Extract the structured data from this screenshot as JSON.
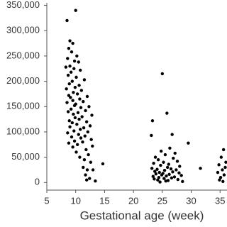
{
  "chart_data": {
    "type": "scatter",
    "x_label": "Gestational age (week)",
    "color": "#000000",
    "xlim": [
      5,
      36.2
    ],
    "ylim": [
      -15000,
      355000
    ],
    "xticks": [
      5,
      10,
      15,
      20,
      25,
      30,
      35
    ],
    "yticks": [
      0,
      {
        "value": 50000,
        "label": "50,000"
      },
      {
        "value": 100000,
        "label": "100,000"
      },
      {
        "value": 150000,
        "label": "150,000"
      },
      {
        "value": 200000,
        "label": "200,000"
      },
      {
        "value": 250000,
        "label": "250,000"
      },
      {
        "value": 300000,
        "label": "300,000"
      },
      {
        "value": 350000,
        "label": "350,000"
      }
    ],
    "x": [
      10,
      8.5,
      9,
      9.5,
      8.8,
      9.3,
      10.2,
      8.6,
      9.8,
      10.5,
      9,
      8.3,
      9.7,
      10.8,
      9.2,
      8.7,
      10.1,
      11.5,
      9.4,
      8.9,
      10.6,
      9.9,
      8.4,
      11,
      9.6,
      10.3,
      8.8,
      12,
      9.1,
      10.7,
      9.5,
      11.3,
      8.5,
      10,
      9.8,
      12.3,
      10.9,
      9.2,
      11.7,
      8.7,
      10.4,
      9.6,
      12.8,
      11.1,
      9.9,
      10.6,
      8.9,
      11.9,
      9.4,
      10.2,
      12.5,
      9,
      11.4,
      10.8,
      9.7,
      12.1,
      8.6,
      10.5,
      11.6,
      9.3,
      10.9,
      12.7,
      9.8,
      11.2,
      8.8,
      10.3,
      12.9,
      9.5,
      11.8,
      10.1,
      12.2,
      10.7,
      11.5,
      12.6,
      14.7,
      11.3,
      12,
      11.7,
      12.4,
      11.9,
      13.4,
      13,
      25,
      25.8,
      23.3,
      26.7,
      23.1,
      29.5,
      26.3,
      24.8,
      27.2,
      25.5,
      23.8,
      26.9,
      24.3,
      27.6,
      25.2,
      23.5,
      26.1,
      24.7,
      28,
      25.9,
      23.2,
      31.6,
      26.5,
      24.1,
      27.4,
      25.4,
      23.7,
      26.8,
      24.5,
      27.9,
      25.1,
      23.9,
      26.2,
      24.9,
      28.3,
      25.7,
      23.4,
      27.1,
      24.4,
      26.6,
      25.3,
      23.6,
      27.7,
      24.2,
      26,
      25.6,
      28.5,
      24.6,
      35.6,
      35.2,
      34.8,
      35.9,
      35.4,
      34.6,
      35.7,
      35.1,
      34.9,
      35.5,
      36
    ],
    "values": [
      340000,
      320000,
      280000,
      275000,
      265000,
      258000,
      250000,
      245000,
      240000,
      238000,
      230000,
      228000,
      225000,
      222000,
      218000,
      212000,
      208000,
      203000,
      200000,
      195000,
      192000,
      188000,
      185000,
      182000,
      178000,
      175000,
      172000,
      170000,
      168000,
      165000,
      162000,
      160000,
      158000,
      155000,
      152000,
      150000,
      148000,
      145000,
      142000,
      140000,
      138000,
      135000,
      133000,
      130000,
      128000,
      125000,
      122000,
      120000,
      118000,
      115000,
      112000,
      110000,
      108000,
      105000,
      102000,
      100000,
      98000,
      95000,
      92000,
      90000,
      88000,
      85000,
      82000,
      80000,
      78000,
      75000,
      72000,
      70000,
      65000,
      60000,
      55000,
      50000,
      45000,
      40000,
      37000,
      30000,
      25000,
      15000,
      8000,
      5000,
      3000,
      25000,
      215000,
      137000,
      122000,
      95000,
      93000,
      78000,
      68000,
      62000,
      58000,
      55000,
      50000,
      48000,
      45000,
      42000,
      40000,
      38000,
      36000,
      34000,
      32000,
      30000,
      28000,
      28000,
      27000,
      26000,
      25000,
      24000,
      22000,
      21000,
      20000,
      19000,
      18000,
      17000,
      16000,
      15000,
      14000,
      13000,
      12000,
      11000,
      10000,
      9000,
      8000,
      7000,
      6000,
      5000,
      4000,
      3000,
      2000,
      1000,
      65000,
      50000,
      35000,
      30000,
      25000,
      20000,
      15000,
      10000,
      5000,
      2000,
      40000
    ]
  }
}
